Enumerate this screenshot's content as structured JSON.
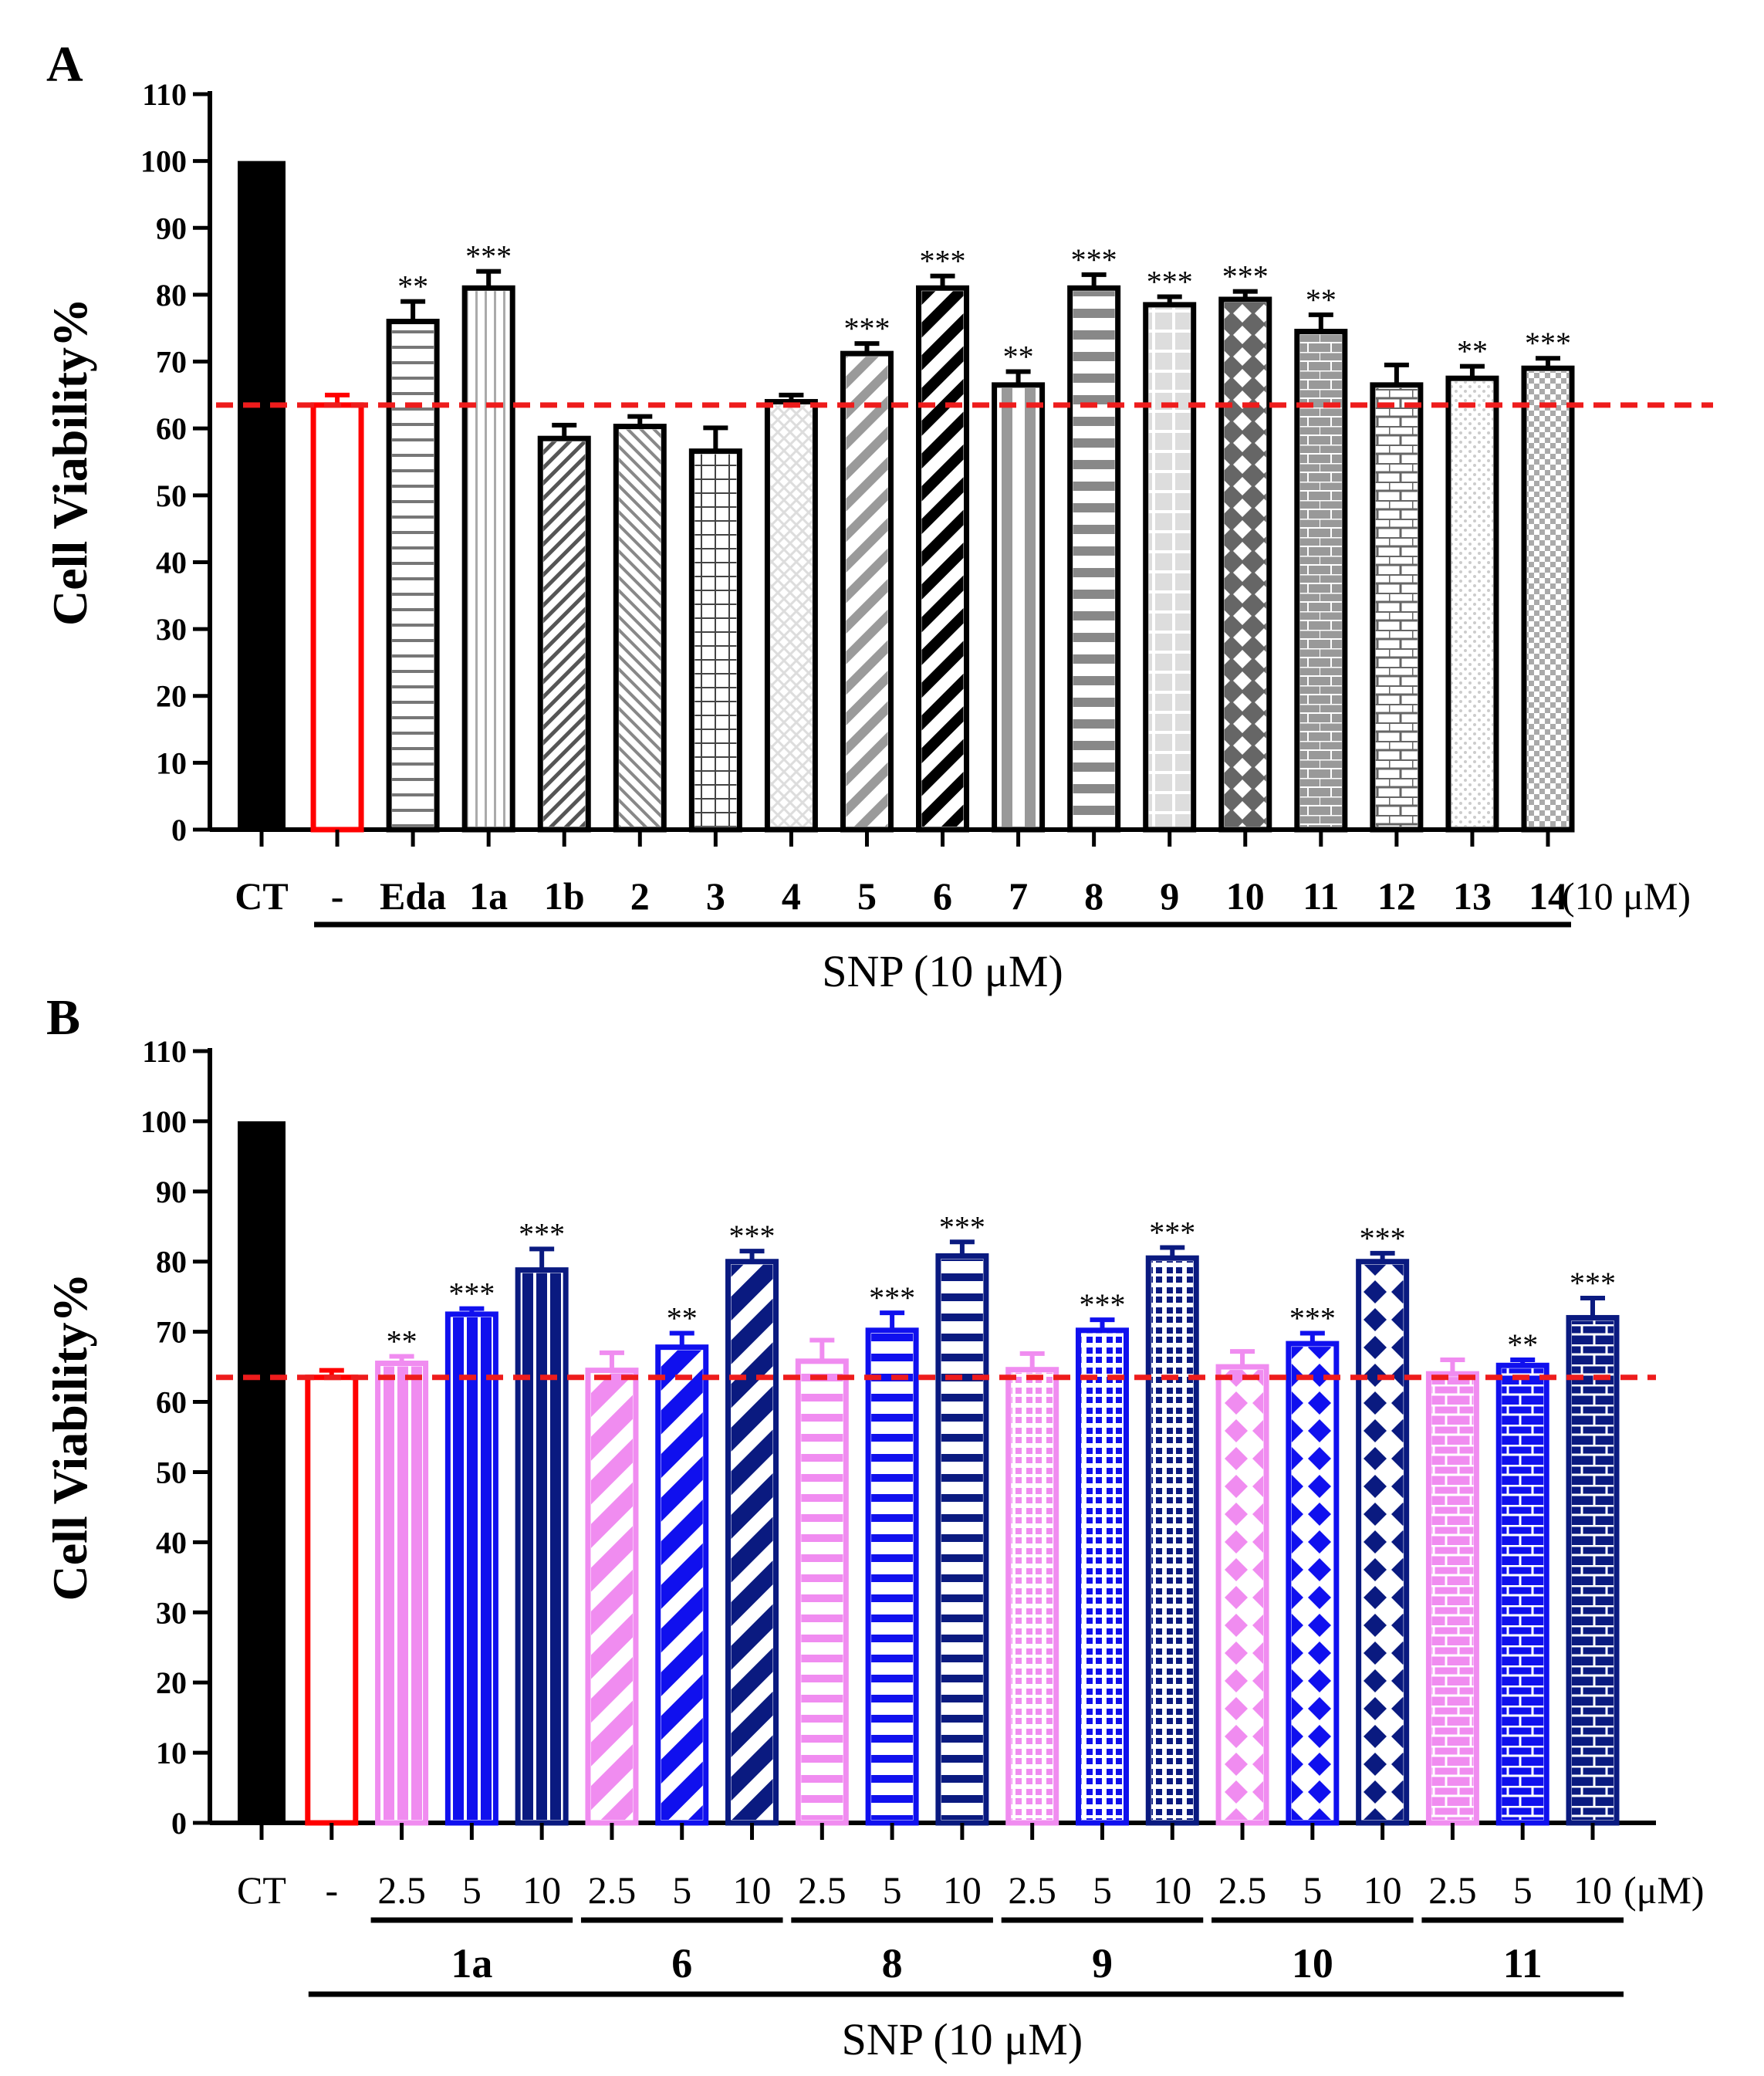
{
  "chart_data": [
    {
      "type": "bar",
      "panel": "A",
      "ylabel": "Cell Viability%",
      "ylim": [
        0,
        110
      ],
      "yticks": [
        "0",
        "10",
        "20",
        "30",
        "40",
        "50",
        "60",
        "70",
        "80",
        "90",
        "100",
        "110"
      ],
      "reference_line": 63.5,
      "categories": [
        "CT",
        "-",
        "Eda",
        "1a",
        "1b",
        "2",
        "3",
        "4",
        "5",
        "6",
        "7",
        "8",
        "9",
        "10",
        "11",
        "12",
        "13",
        "14"
      ],
      "unit_label": "(10 μM)",
      "group_label": "SNP (10 μM)",
      "series": [
        {
          "name": "Cell Viability",
          "values": [
            100,
            63.5,
            76,
            81,
            58.5,
            60.3,
            56.6,
            64,
            71.2,
            81,
            66.5,
            81,
            78.5,
            79.3,
            74.5,
            66.5,
            67.5,
            69
          ],
          "errors": [
            0,
            1.5,
            3,
            2.5,
            2,
            1.5,
            3.5,
            1,
            1.5,
            1.8,
            2,
            2,
            1.2,
            1.2,
            2.5,
            3,
            1.8,
            1.5
          ],
          "significance": [
            "",
            "",
            "**",
            "***",
            "",
            "",
            "",
            "",
            "***",
            "***",
            "**",
            "***",
            "***",
            "***",
            "**",
            "",
            "**",
            "***"
          ]
        }
      ]
    },
    {
      "type": "bar",
      "panel": "B",
      "ylabel": "Cell Viability%",
      "ylim": [
        0,
        110
      ],
      "yticks": [
        "0",
        "10",
        "20",
        "30",
        "40",
        "50",
        "60",
        "70",
        "80",
        "90",
        "100",
        "110"
      ],
      "reference_line": 63.5,
      "categories": [
        "CT",
        "-",
        "2.5",
        "5",
        "10",
        "2.5",
        "5",
        "10",
        "2.5",
        "5",
        "10",
        "2.5",
        "5",
        "10",
        "2.5",
        "5",
        "10",
        "2.5",
        "5",
        "10"
      ],
      "unit_label": "(μM)",
      "compound_groups": [
        "1a",
        "6",
        "8",
        "9",
        "10",
        "11"
      ],
      "group_label": "SNP (10 μM)",
      "series": [
        {
          "name": "Cell Viability",
          "values": [
            100,
            63.5,
            65.5,
            72.5,
            78.8,
            64.5,
            67.8,
            80,
            65.8,
            70.2,
            80.8,
            64.6,
            70.2,
            80.5,
            65,
            68.3,
            80,
            64,
            65.2,
            72
          ],
          "errors": [
            0,
            1,
            1,
            0.8,
            3,
            2.5,
            2,
            1.5,
            3,
            2.5,
            2,
            2.3,
            1.5,
            1.5,
            2.2,
            1.5,
            1.2,
            2,
            0.8,
            2.8
          ],
          "significance": [
            "",
            "",
            "**",
            "***",
            "***",
            "",
            "**",
            "***",
            "",
            "***",
            "***",
            "",
            "***",
            "***",
            "",
            "***",
            "***",
            "",
            "**",
            "***"
          ]
        }
      ]
    }
  ]
}
